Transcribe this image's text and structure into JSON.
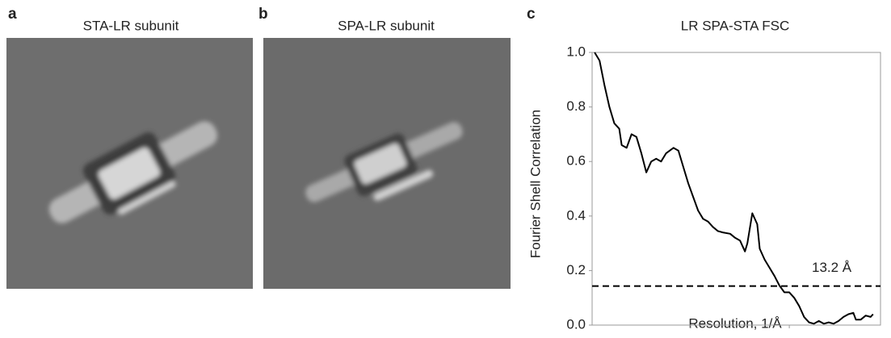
{
  "panels": [
    {
      "label": "a",
      "title": "STA-LR subunit"
    },
    {
      "label": "b",
      "title": "SPA-LR subunit"
    }
  ],
  "chart_data": {
    "type": "line",
    "panel_label": "c",
    "title": "LR SPA-STA FSC",
    "x_label": "Resolution, 1/Å",
    "y_label": "Fourier Shell Correlation",
    "x": [
      0.001,
      0.003,
      0.005,
      0.007,
      0.009,
      0.011,
      0.012,
      0.014,
      0.016,
      0.018,
      0.02,
      0.022,
      0.024,
      0.026,
      0.028,
      0.03,
      0.033,
      0.035,
      0.037,
      0.039,
      0.041,
      0.043,
      0.045,
      0.047,
      0.049,
      0.051,
      0.053,
      0.056,
      0.058,
      0.06,
      0.062,
      0.063,
      0.065,
      0.067,
      0.068,
      0.07,
      0.072,
      0.074,
      0.076,
      0.078,
      0.08,
      0.082,
      0.084,
      0.086,
      0.088,
      0.09,
      0.092,
      0.094,
      0.096,
      0.098,
      0.1,
      0.102,
      0.104,
      0.106,
      0.107,
      0.109,
      0.111,
      0.113,
      0.114
    ],
    "values": [
      1.0,
      0.97,
      0.88,
      0.8,
      0.74,
      0.72,
      0.66,
      0.65,
      0.7,
      0.69,
      0.63,
      0.56,
      0.6,
      0.61,
      0.6,
      0.63,
      0.65,
      0.64,
      0.58,
      0.52,
      0.47,
      0.42,
      0.39,
      0.38,
      0.36,
      0.345,
      0.34,
      0.335,
      0.32,
      0.31,
      0.27,
      0.3,
      0.41,
      0.37,
      0.28,
      0.24,
      0.21,
      0.18,
      0.145,
      0.12,
      0.12,
      0.1,
      0.07,
      0.03,
      0.01,
      0.005,
      0.015,
      0.005,
      0.01,
      0.005,
      0.015,
      0.03,
      0.04,
      0.045,
      0.02,
      0.02,
      0.035,
      0.03,
      0.04
    ],
    "color": "#000000",
    "threshold": 0.143,
    "annotation": "13.2 Å",
    "xlim": [
      0,
      0.117
    ],
    "xticks": [
      0.04,
      0.08
    ],
    "ylim": [
      0,
      1
    ],
    "yticks": [
      {
        "value": 0,
        "label": "0.0"
      },
      0.2,
      0.4,
      0.6,
      0.8,
      {
        "value": 1,
        "label": "1.0"
      }
    ]
  }
}
